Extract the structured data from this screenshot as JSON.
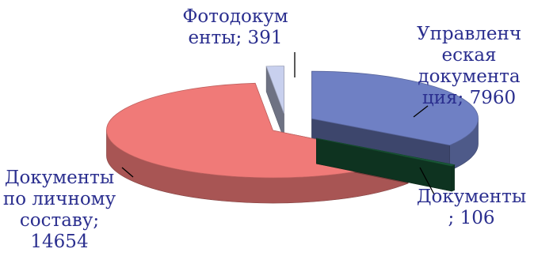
{
  "chart_data": {
    "type": "pie",
    "style": "3d-exploded",
    "slices": [
      {
        "label": "Управленческая документация",
        "value": 7960,
        "color": "#6f80c4"
      },
      {
        "label": "Документы",
        "value": 106,
        "color": "#1a5c3a"
      },
      {
        "label": "Документы по личному составу",
        "value": 14654,
        "color": "#f07a78"
      },
      {
        "label": "Фотодокументы",
        "value": 391,
        "color": "#c8d0ee"
      }
    ],
    "data_labels": [
      "Фотодокум\nенты; 391",
      "Управленч\nеская\nдокумента\nция; 7960",
      "Документы\n; 106",
      "Документы\nпо личному\nсоставу;\n14654"
    ]
  }
}
